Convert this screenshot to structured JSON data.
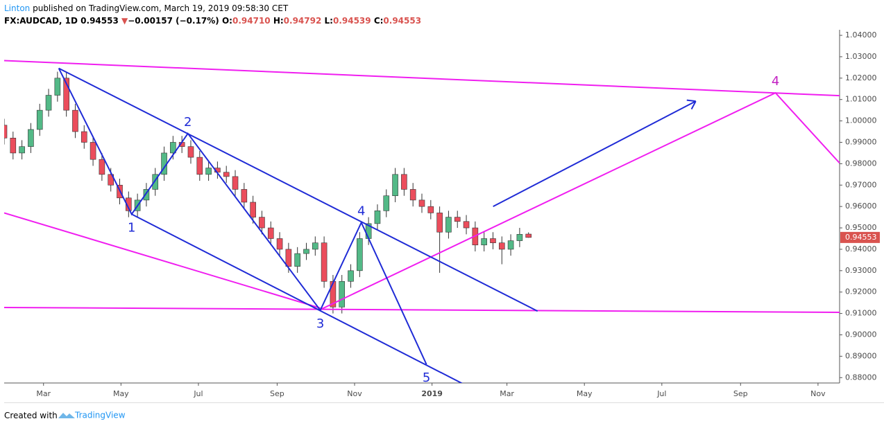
{
  "header": {
    "author": "Linton",
    "published": " published on TradingView.com, March 19, 2019 09:58:30 CET",
    "symbol": "FX:AUDCAD, 1D",
    "last": "0.94553",
    "arrow": "▼",
    "change": "−0.00157 (−0.17%)",
    "o_label": "O:",
    "o": "0.94710",
    "h_label": "H:",
    "h": "0.94792",
    "l_label": "L:",
    "l": "0.94539",
    "c_label": "C:",
    "c": "0.94553"
  },
  "chart_data": {
    "type": "candlestick",
    "x": [
      28,
      35,
      42,
      49,
      56,
      63,
      70,
      77,
      84,
      91,
      98,
      105,
      112,
      119,
      126,
      133,
      140,
      147,
      154,
      161,
      168,
      175,
      182,
      189,
      196,
      203,
      210,
      217,
      224,
      231,
      238,
      245,
      252,
      259,
      266,
      273,
      280,
      287,
      294,
      301,
      308,
      315,
      322,
      329,
      336,
      343,
      350,
      357,
      364,
      371,
      378,
      385,
      392,
      399,
      406,
      413,
      420,
      427,
      434,
      441
    ],
    "open": [
      0.998,
      0.992,
      0.985,
      0.988,
      0.996,
      1.005,
      1.012,
      1.02,
      1.005,
      0.995,
      0.99,
      0.982,
      0.975,
      0.97,
      0.964,
      0.958,
      0.963,
      0.968,
      0.975,
      0.985,
      0.99,
      0.988,
      0.983,
      0.975,
      0.978,
      0.976,
      0.974,
      0.968,
      0.962,
      0.955,
      0.95,
      0.945,
      0.94,
      0.932,
      0.938,
      0.94,
      0.943,
      0.925,
      0.913,
      0.925,
      0.93,
      0.945,
      0.952,
      0.958,
      0.965,
      0.975,
      0.968,
      0.963,
      0.96,
      0.957,
      0.948,
      0.955,
      0.953,
      0.95,
      0.942,
      0.945,
      0.943,
      0.94,
      0.944,
      0.9471
    ],
    "high": [
      1.001,
      0.995,
      0.991,
      0.999,
      1.008,
      1.015,
      1.023,
      1.023,
      1.008,
      0.998,
      0.993,
      0.985,
      0.978,
      0.973,
      0.967,
      0.966,
      0.971,
      0.978,
      0.988,
      0.993,
      0.993,
      0.991,
      0.986,
      0.981,
      0.981,
      0.979,
      0.977,
      0.971,
      0.965,
      0.958,
      0.953,
      0.948,
      0.943,
      0.941,
      0.943,
      0.946,
      0.946,
      0.928,
      0.928,
      0.933,
      0.948,
      0.955,
      0.961,
      0.968,
      0.978,
      0.978,
      0.971,
      0.966,
      0.963,
      0.96,
      0.958,
      0.958,
      0.956,
      0.953,
      0.948,
      0.948,
      0.946,
      0.947,
      0.95,
      0.94792
    ],
    "low": [
      0.989,
      0.982,
      0.982,
      0.985,
      0.993,
      1.002,
      1.009,
      1.002,
      0.992,
      0.987,
      0.979,
      0.972,
      0.967,
      0.961,
      0.955,
      0.955,
      0.96,
      0.965,
      0.972,
      0.982,
      0.985,
      0.98,
      0.972,
      0.972,
      0.973,
      0.971,
      0.965,
      0.959,
      0.952,
      0.947,
      0.942,
      0.937,
      0.929,
      0.929,
      0.935,
      0.937,
      0.922,
      0.91,
      0.91,
      0.922,
      0.927,
      0.942,
      0.949,
      0.955,
      0.962,
      0.965,
      0.96,
      0.957,
      0.954,
      0.929,
      0.945,
      0.95,
      0.947,
      0.939,
      0.939,
      0.94,
      0.933,
      0.937,
      0.941,
      0.94539
    ],
    "close": [
      0.992,
      0.985,
      0.988,
      0.996,
      1.005,
      1.012,
      1.02,
      1.005,
      0.995,
      0.99,
      0.982,
      0.975,
      0.97,
      0.964,
      0.958,
      0.963,
      0.968,
      0.975,
      0.985,
      0.99,
      0.988,
      0.983,
      0.975,
      0.978,
      0.976,
      0.974,
      0.968,
      0.962,
      0.955,
      0.95,
      0.945,
      0.94,
      0.932,
      0.938,
      0.94,
      0.943,
      0.925,
      0.913,
      0.925,
      0.93,
      0.945,
      0.952,
      0.958,
      0.965,
      0.975,
      0.968,
      0.963,
      0.96,
      0.957,
      0.948,
      0.955,
      0.953,
      0.95,
      0.942,
      0.945,
      0.943,
      0.94,
      0.944,
      0.947,
      0.94553
    ],
    "up_color": "#53b987",
    "down_color": "#eb4d5c",
    "xlim": [
      28,
      686
    ],
    "xticks": [
      {
        "value": 59,
        "label": "Mar"
      },
      {
        "value": 120,
        "label": "May"
      },
      {
        "value": 181,
        "label": "Jul"
      },
      {
        "value": 243,
        "label": "Sep"
      },
      {
        "value": 304,
        "label": "Nov"
      },
      {
        "value": 365,
        "label": "2019"
      },
      {
        "value": 424,
        "label": "Mar"
      },
      {
        "value": 485,
        "label": "May"
      },
      {
        "value": 546,
        "label": "Jul"
      },
      {
        "value": 608,
        "label": "Sep"
      },
      {
        "value": 669,
        "label": "Nov"
      }
    ],
    "ylim": [
      0.8775,
      1.0426
    ],
    "yticks": [
      {
        "value": 0.88,
        "label": "0.88000"
      },
      {
        "value": 0.89,
        "label": "0.89000"
      },
      {
        "value": 0.9,
        "label": "0.90000"
      },
      {
        "value": 0.91,
        "label": "0.91000"
      },
      {
        "value": 0.92,
        "label": "0.92000"
      },
      {
        "value": 0.93,
        "label": "0.93000"
      },
      {
        "value": 0.94,
        "label": "0.94000"
      },
      {
        "value": 0.95,
        "label": "0.95000"
      },
      {
        "value": 0.96,
        "label": "0.96000"
      },
      {
        "value": 0.97,
        "label": "0.97000"
      },
      {
        "value": 0.98,
        "label": "0.98000"
      },
      {
        "value": 0.99,
        "label": "0.99000"
      },
      {
        "value": 1.0,
        "label": "1.00000"
      },
      {
        "value": 1.01,
        "label": "1.01000"
      },
      {
        "value": 1.02,
        "label": "1.02000"
      },
      {
        "value": 1.03,
        "label": "1.03000"
      },
      {
        "value": 1.04,
        "label": "1.04000"
      }
    ],
    "price_tag": {
      "value": 0.94553,
      "label": "0.94553",
      "color": "#d9534f"
    },
    "drawings": [
      {
        "color": "#f01ef0",
        "points": [
          [
            28,
            1.0282
          ],
          [
            686,
            1.0118
          ]
        ]
      },
      {
        "color": "#f01ef0",
        "points": [
          [
            28,
            0.957
          ],
          [
            277,
            0.9125
          ]
        ]
      },
      {
        "color": "#f01ef0",
        "points": [
          [
            28,
            0.9128
          ],
          [
            686,
            0.9105
          ]
        ]
      },
      {
        "color": "#f01ef0",
        "points": [
          [
            277,
            0.9118
          ],
          [
            635.5,
            1.0131
          ],
          [
            686,
            0.9803
          ]
        ]
      },
      {
        "color": "#1f2bd6",
        "points": [
          [
            71,
            1.0246
          ],
          [
            128.4,
            0.9564
          ],
          [
            172.7,
            0.9941
          ],
          [
            277,
            0.9115
          ],
          [
            309.3,
            0.9525
          ],
          [
            360.6,
            0.8862
          ]
        ]
      },
      {
        "color": "#1f2bd6",
        "points": [
          [
            71,
            1.0246
          ],
          [
            448.1,
            0.9111
          ]
        ]
      },
      {
        "color": "#1f2bd6",
        "points": [
          [
            128.4,
            0.9564
          ],
          [
            394,
            0.8757
          ]
        ]
      },
      {
        "color": "#1f2bd6",
        "points": [
          [
            413.1,
            0.96
          ],
          [
            572.7,
            1.0092
          ]
        ],
        "arrow": true
      }
    ],
    "wave_labels": [
      {
        "label": "1",
        "x": 128.4,
        "y": 0.9564,
        "side": "below",
        "color": "#1f2bd6"
      },
      {
        "label": "2",
        "x": 172.7,
        "y": 0.9941,
        "side": "above",
        "color": "#1f2bd6"
      },
      {
        "label": "3",
        "x": 277,
        "y": 0.9115,
        "side": "below",
        "color": "#1f2bd6"
      },
      {
        "label": "4",
        "x": 309.3,
        "y": 0.9525,
        "side": "above",
        "color": "#1f2bd6"
      },
      {
        "label": "5",
        "x": 360.6,
        "y": 0.8862,
        "side": "below",
        "color": "#1f2bd6"
      },
      {
        "label": "4",
        "x": 635.5,
        "y": 1.0131,
        "side": "above",
        "color": "#c21fc2"
      }
    ]
  },
  "footer": {
    "created": "Created with",
    "brand": "TradingView"
  }
}
